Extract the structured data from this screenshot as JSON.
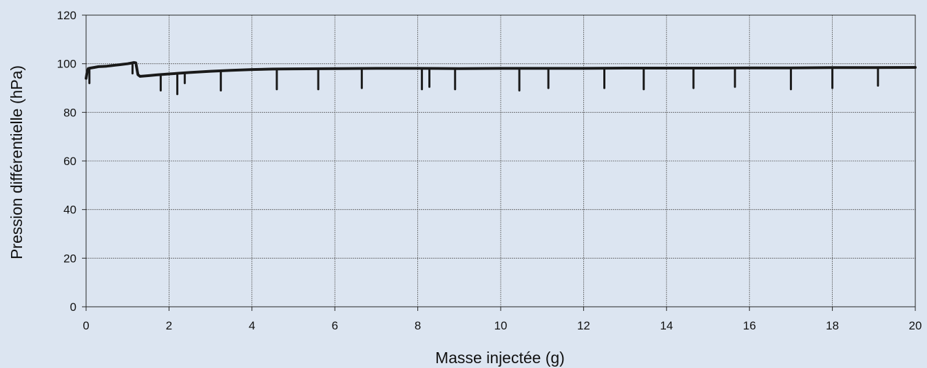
{
  "chart_data": {
    "type": "line",
    "title": "",
    "xlabel": "Masse injectée (g)",
    "ylabel": "Pression différentielle (hPa)",
    "xlim": [
      0,
      20
    ],
    "ylim": [
      0,
      120
    ],
    "xticks": [
      "0",
      "2",
      "4",
      "6",
      "8",
      "10",
      "12",
      "14",
      "16",
      "18",
      "20"
    ],
    "yticks": [
      "0",
      "20",
      "40",
      "60",
      "80",
      "100",
      "120"
    ],
    "grid": true,
    "legend": "none",
    "colors": {
      "background": "#dce5f1",
      "plot_area": "#dce5f1",
      "line": "#1a1a1a",
      "grid": "#5a5a5a",
      "axis": "#222222"
    },
    "series": [
      {
        "points": [
          [
            0.0,
            94
          ],
          [
            0.02,
            96
          ],
          [
            0.05,
            98
          ],
          [
            0.1,
            98.2
          ],
          [
            0.2,
            98.5
          ],
          [
            0.3,
            98.8
          ],
          [
            0.4,
            98.9
          ],
          [
            0.5,
            99.0
          ],
          [
            0.6,
            99.2
          ],
          [
            0.7,
            99.4
          ],
          [
            0.8,
            99.6
          ],
          [
            0.9,
            99.8
          ],
          [
            1.0,
            100.0
          ],
          [
            1.1,
            100.3
          ],
          [
            1.15,
            100.5
          ],
          [
            1.2,
            100.4
          ],
          [
            1.25,
            95.5
          ],
          [
            1.3,
            94.8
          ],
          [
            1.5,
            95.1
          ],
          [
            1.7,
            95.4
          ],
          [
            2.0,
            95.8
          ],
          [
            2.5,
            96.4
          ],
          [
            3.0,
            96.9
          ],
          [
            3.5,
            97.3
          ],
          [
            4.0,
            97.6
          ],
          [
            4.5,
            97.8
          ],
          [
            5.0,
            97.9
          ],
          [
            6.0,
            98.0
          ],
          [
            7.0,
            98.1
          ],
          [
            8.0,
            98.1
          ],
          [
            9.0,
            98.0
          ],
          [
            10.0,
            98.1
          ],
          [
            11.0,
            98.1
          ],
          [
            12.0,
            98.1
          ],
          [
            13.0,
            98.2
          ],
          [
            14.0,
            98.2
          ],
          [
            15.0,
            98.2
          ],
          [
            16.0,
            98.3
          ],
          [
            17.0,
            98.3
          ],
          [
            18.0,
            98.4
          ],
          [
            19.0,
            98.4
          ],
          [
            20.0,
            98.5
          ]
        ],
        "spikes": [
          [
            0.08,
            92
          ],
          [
            1.12,
            96
          ],
          [
            1.8,
            89
          ],
          [
            2.2,
            87.5
          ],
          [
            2.38,
            92
          ],
          [
            3.25,
            89
          ],
          [
            4.6,
            89.5
          ],
          [
            5.6,
            89.5
          ],
          [
            6.65,
            90
          ],
          [
            8.1,
            89.5
          ],
          [
            8.28,
            90.5
          ],
          [
            8.9,
            89.5
          ],
          [
            10.45,
            89
          ],
          [
            11.15,
            90
          ],
          [
            12.5,
            90
          ],
          [
            13.45,
            89.5
          ],
          [
            14.65,
            90
          ],
          [
            15.65,
            90.5
          ],
          [
            17.0,
            89.5
          ],
          [
            18.0,
            90
          ],
          [
            19.1,
            91
          ]
        ]
      }
    ]
  }
}
